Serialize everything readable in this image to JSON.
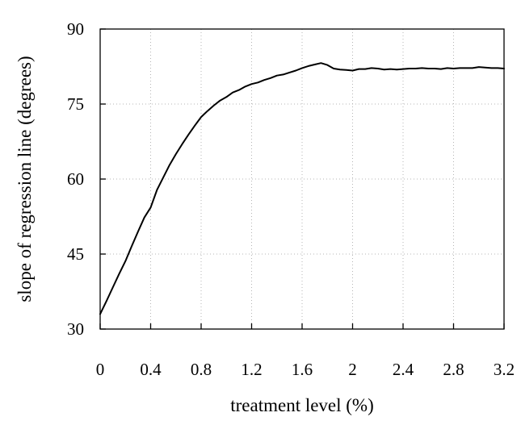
{
  "chart_data": {
    "type": "line",
    "title": "",
    "xlabel": "treatment level (%)",
    "ylabel": "slope of regression line (degrees)",
    "xlim": [
      0,
      3.2
    ],
    "ylim": [
      30,
      90
    ],
    "xticks": [
      "0",
      "0.4",
      "0.8",
      "1.2",
      "1.6",
      "2",
      "2.4",
      "2.8",
      "3.2"
    ],
    "yticks": [
      "30",
      "45",
      "60",
      "75",
      "90"
    ],
    "grid": true,
    "series": [
      {
        "color": "#000000",
        "x": [
          0.0,
          0.05,
          0.1,
          0.15,
          0.2,
          0.25,
          0.3,
          0.35,
          0.4,
          0.45,
          0.5,
          0.55,
          0.6,
          0.65,
          0.7,
          0.75,
          0.8,
          0.85,
          0.9,
          0.95,
          1.0,
          1.05,
          1.1,
          1.15,
          1.2,
          1.25,
          1.3,
          1.35,
          1.4,
          1.45,
          1.5,
          1.55,
          1.6,
          1.65,
          1.7,
          1.75,
          1.8,
          1.85,
          1.9,
          1.95,
          2.0,
          2.05,
          2.1,
          2.15,
          2.2,
          2.25,
          2.3,
          2.35,
          2.4,
          2.45,
          2.5,
          2.55,
          2.6,
          2.65,
          2.7,
          2.75,
          2.8,
          2.85,
          2.9,
          2.95,
          3.0,
          3.05,
          3.1,
          3.15,
          3.2
        ],
        "y": [
          33.0,
          35.6,
          38.3,
          41.0,
          43.6,
          46.6,
          49.5,
          52.3,
          54.3,
          57.8,
          60.3,
          62.8,
          65.0,
          67.0,
          68.9,
          70.7,
          72.4,
          73.6,
          74.7,
          75.7,
          76.4,
          77.3,
          77.8,
          78.5,
          79.0,
          79.3,
          79.8,
          80.2,
          80.7,
          80.9,
          81.3,
          81.7,
          82.2,
          82.6,
          82.9,
          83.2,
          82.8,
          82.1,
          81.9,
          81.8,
          81.7,
          82.0,
          82.0,
          82.2,
          82.1,
          81.9,
          82.0,
          81.9,
          82.0,
          82.1,
          82.1,
          82.2,
          82.1,
          82.1,
          82.0,
          82.2,
          82.1,
          82.2,
          82.2,
          82.2,
          82.4,
          82.3,
          82.2,
          82.2,
          82.1
        ]
      }
    ]
  }
}
